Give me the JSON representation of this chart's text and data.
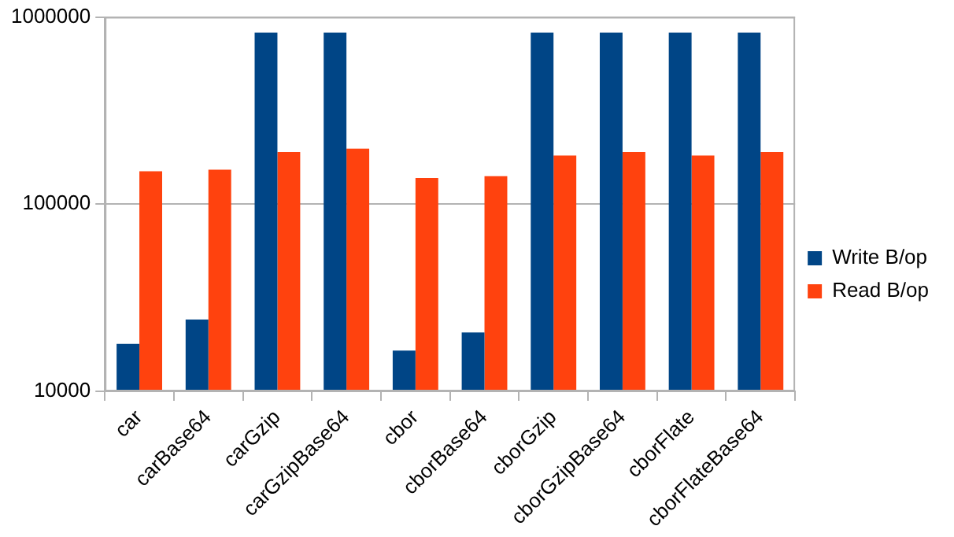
{
  "chart_data": {
    "type": "bar",
    "categories": [
      "car",
      "carBase64",
      "carGzip",
      "carGzipBase64",
      "cbor",
      "cborBase64",
      "cborGzip",
      "cborGzipBase64",
      "cborFlate",
      "cborFlateBase64"
    ],
    "series": [
      {
        "name": "Write B/op",
        "color": "#004586",
        "values": [
          17900,
          24200,
          824000,
          824000,
          16500,
          20600,
          824000,
          824000,
          824000,
          824000
        ]
      },
      {
        "name": "Read B/op",
        "color": "#ff420e",
        "values": [
          150000,
          153000,
          190000,
          198000,
          138000,
          141000,
          182000,
          190000,
          182000,
          190000
        ]
      }
    ],
    "log": "y",
    "ylim": [
      10000,
      1000000
    ],
    "yticks": [
      10000,
      100000,
      1000000
    ],
    "grid": "y",
    "legend": "right"
  }
}
